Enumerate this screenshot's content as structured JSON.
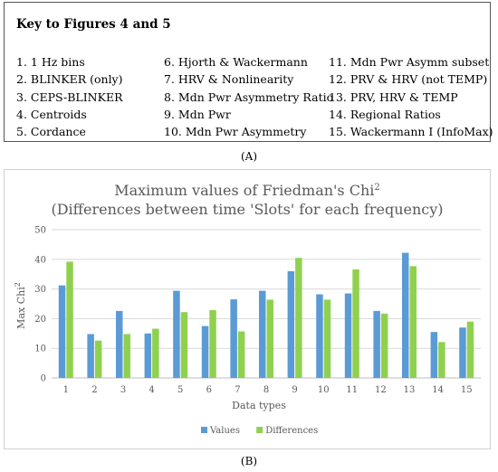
{
  "key": {
    "title": "Key to Figures 4 and 5",
    "columns": [
      [
        "1. 1 Hz bins",
        "2. BLINKER (only)",
        "3. CEPS-BLINKER",
        "4. Centroids",
        "5. Cordance"
      ],
      [
        "6. Hjorth & Wackermann",
        "7. HRV & Nonlinearity",
        "8. Mdn Pwr Asymmetry Ratio",
        "9. Mdn Pwr",
        "10. Mdn Pwr Asymmetry"
      ],
      [
        "11. Mdn Pwr Asymm subset",
        "12. PRV & HRV (not TEMP)",
        "13. PRV, HRV & TEMP",
        "14. Regional Ratios",
        "15. Wackermann I (InfoMax)"
      ]
    ]
  },
  "panel_labels": {
    "a": "(A)",
    "b": "(B)"
  },
  "chart_data": {
    "type": "bar",
    "title_line1": "Maximum values of Friedman's Chi",
    "title_sup": "2",
    "title_line2": "(Differences between time 'Slots' for each frequency)",
    "xlabel": "Data types",
    "ylabel": "Max Chi",
    "ylabel_sup": "2",
    "ylim": [
      0,
      50
    ],
    "yticks": [
      0,
      10,
      20,
      30,
      40,
      50
    ],
    "grid": true,
    "legend_position": "bottom",
    "categories": [
      "1",
      "2",
      "3",
      "4",
      "5",
      "6",
      "7",
      "8",
      "9",
      "10",
      "11",
      "12",
      "13",
      "14",
      "15"
    ],
    "series": [
      {
        "name": "Values",
        "color": "#5b9bd5",
        "values": [
          31.2,
          14.8,
          22.6,
          15.0,
          29.4,
          17.5,
          26.5,
          29.4,
          36.0,
          28.2,
          28.5,
          22.6,
          42.2,
          15.5,
          17.0
        ]
      },
      {
        "name": "Differences",
        "color": "#8fd14f",
        "values": [
          39.2,
          12.6,
          14.8,
          16.6,
          22.2,
          22.9,
          15.7,
          26.4,
          40.5,
          26.4,
          36.6,
          21.7,
          37.7,
          12.1,
          19.0
        ]
      }
    ]
  }
}
